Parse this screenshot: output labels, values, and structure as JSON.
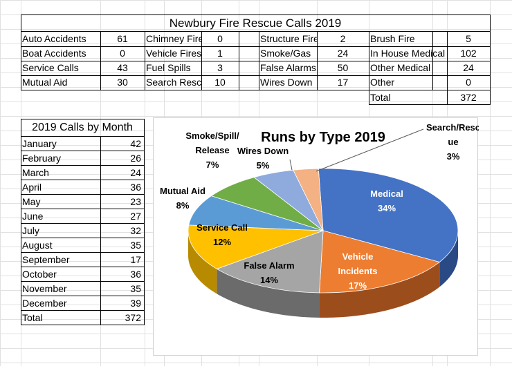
{
  "top_table": {
    "title": "Newbury Fire Rescue Calls 2019",
    "rows": [
      [
        {
          "label": "Auto Accidents",
          "value": "61"
        },
        {
          "label": "Chimney Fires",
          "value": "0"
        },
        {
          "label": "Structure Fire",
          "value": "2"
        },
        {
          "label": "Brush Fire",
          "value": "5"
        }
      ],
      [
        {
          "label": "Boat Accidents",
          "value": "0"
        },
        {
          "label": "Vehicle Fires",
          "value": "1"
        },
        {
          "label": "Smoke/Gas",
          "value": "24"
        },
        {
          "label": "In House Medical",
          "value": "102"
        }
      ],
      [
        {
          "label": "Service Calls",
          "value": "43"
        },
        {
          "label": "Fuel Spills",
          "value": "3"
        },
        {
          "label": "False Alarms",
          "value": "50"
        },
        {
          "label": "Other Medical",
          "value": "24"
        }
      ],
      [
        {
          "label": "Mutual Aid",
          "value": "30"
        },
        {
          "label": "Search Rescue",
          "value": "10"
        },
        {
          "label": "Wires Down",
          "value": "17"
        },
        {
          "label": "Other",
          "value": "0"
        }
      ]
    ],
    "total_label": "Total",
    "total_value": "372"
  },
  "month_table": {
    "title": "2019 Calls by Month",
    "rows": [
      {
        "month": "January",
        "value": "42"
      },
      {
        "month": "February",
        "value": "26"
      },
      {
        "month": "March",
        "value": "24"
      },
      {
        "month": "April",
        "value": "36"
      },
      {
        "month": "May",
        "value": "23"
      },
      {
        "month": "June",
        "value": "27"
      },
      {
        "month": "July",
        "value": "32"
      },
      {
        "month": "August",
        "value": "35"
      },
      {
        "month": "September",
        "value": "17"
      },
      {
        "month": "October",
        "value": "36"
      },
      {
        "month": "November",
        "value": "35"
      },
      {
        "month": "December",
        "value": "39"
      }
    ],
    "total_label": "Total",
    "total_value": "372"
  },
  "chart_data": {
    "type": "pie",
    "title": "Runs by Type 2019",
    "style": "3d",
    "slices": [
      {
        "label": "Medical",
        "pct": "34%",
        "value": 34,
        "color": "#4472c4",
        "side": "#2a4a85"
      },
      {
        "label": "Vehicle Incidents",
        "pct": "17%",
        "value": 17,
        "color": "#ed7d31",
        "side": "#9c4d1c"
      },
      {
        "label": "False Alarm",
        "pct": "14%",
        "value": 14,
        "color": "#a5a5a5",
        "side": "#6b6b6b"
      },
      {
        "label": "Service Call",
        "pct": "12%",
        "value": 12,
        "color": "#ffc000",
        "side": "#b88a00"
      },
      {
        "label": "Mutual Aid",
        "pct": "8%",
        "value": 8,
        "color": "#5b9bd5",
        "side": "#3a6c99"
      },
      {
        "label": "Smoke/Spill/Release",
        "pct": "7%",
        "value": 7,
        "color": "#70ad47",
        "side": "#4a7a2d"
      },
      {
        "label": "Wires Down",
        "pct": "5%",
        "value": 5,
        "color": "#8faadc",
        "side": "#5f78a8"
      },
      {
        "label": "Search/Rescue",
        "pct": "3%",
        "value": 3,
        "color": "#f4b183",
        "side": "#b07a54"
      }
    ]
  }
}
